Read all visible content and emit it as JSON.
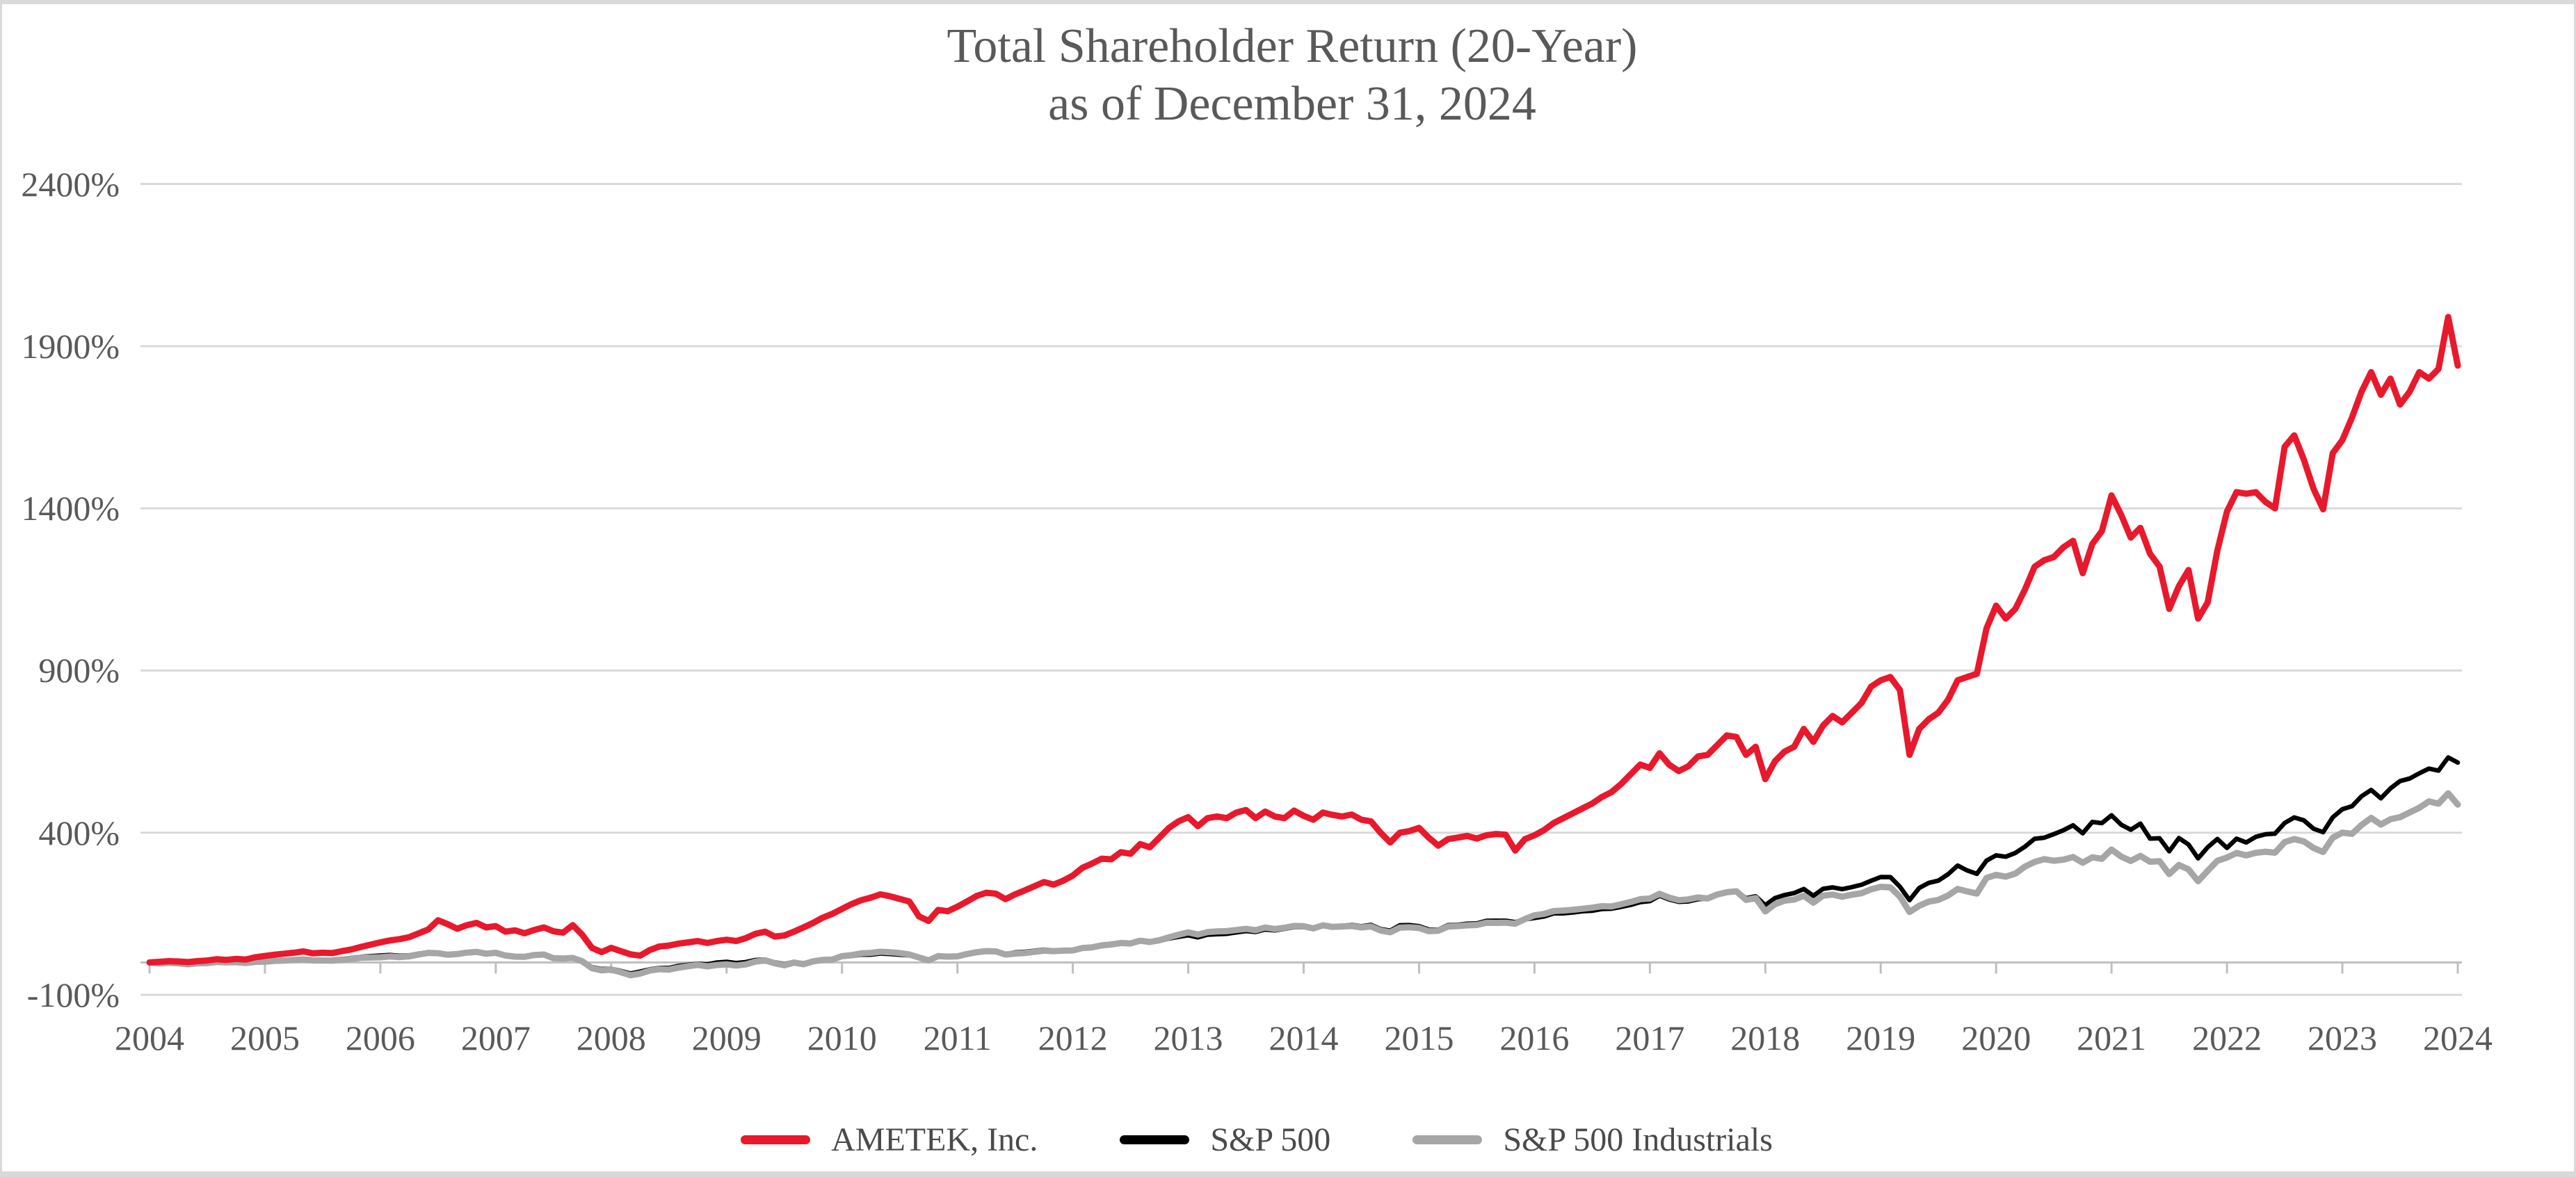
{
  "page": {
    "frame_color": "#d9d9d9",
    "background": "#ffffff"
  },
  "chart_data": {
    "type": "line",
    "title": "Total Shareholder Return (20-Year)",
    "subtitle": "as of December 31, 2024",
    "grid": true,
    "legend_position": "bottom",
    "ylim": [
      -100,
      2400
    ],
    "y_axis_unit": "%",
    "y_ticks": [
      {
        "label": "2400%",
        "value": 2400
      },
      {
        "label": "1900%",
        "value": 1900
      },
      {
        "label": "1400%",
        "value": 1400
      },
      {
        "label": "900%",
        "value": 900
      },
      {
        "label": "400%",
        "value": 400
      },
      {
        "label": "-100%",
        "value": -100
      }
    ],
    "x_ticks": [
      "2004",
      "2005",
      "2006",
      "2007",
      "2008",
      "2009",
      "2010",
      "2011",
      "2012",
      "2013",
      "2014",
      "2015",
      "2016",
      "2017",
      "2018",
      "2019",
      "2020",
      "2021",
      "2022",
      "2023",
      "2024"
    ],
    "x_start": "December 2004 = 0%",
    "points_per_year": 12,
    "grid_color": "#d9d9d9",
    "axis_color": "#bfbfbf",
    "label_color": "#595959",
    "series": [
      {
        "name": "S&P 500",
        "color": "#000000",
        "stroke_width": 6.5,
        "values": [
          0,
          -2.4,
          -0.5,
          -2.2,
          -4.1,
          -1.2,
          -1.1,
          2.5,
          1.6,
          2.4,
          0.7,
          4.5,
          4.9,
          7.6,
          7.9,
          9.2,
          10.6,
          7.4,
          7.5,
          8.2,
          10.8,
          13.7,
          17.4,
          19.6,
          21.3,
          23.1,
          20.4,
          21.8,
          27.2,
          31.6,
          29.5,
          25.6,
          27.4,
          32.1,
          34.1,
          28.4,
          27.9,
          20.2,
          16.3,
          15.8,
          21.5,
          23.1,
          12.7,
          11.8,
          13.4,
          3.3,
          -14.1,
          -20.3,
          -19.4,
          -26.2,
          -34.1,
          -28.3,
          -21.4,
          -17.0,
          -16.9,
          -10.6,
          -7.4,
          -4.0,
          -5.8,
          -0.2,
          1.9,
          -1.8,
          1.3,
          7.4,
          9.1,
          0.4,
          -4.9,
          1.8,
          -2.8,
          5.8,
          9.8,
          9.8,
          17.2,
          19.9,
          24.0,
          23.9,
          27.6,
          26.2,
          24.1,
          21.6,
          15.0,
          7.0,
          18.6,
          18.3,
          19.6,
          25.0,
          30.4,
          34.7,
          33.9,
          25.9,
          31.1,
          32.9,
          36.0,
          39.5,
          37.0,
          37.8,
          38.8,
          46.0,
          48.0,
          53.6,
          56.5,
          60.1,
          58.0,
          66.0,
          61.2,
          66.2,
          73.9,
          79.1,
          83.8,
          77.4,
          85.5,
          87.0,
          88.4,
          92.7,
          96.7,
          94.0,
          101.7,
          98.9,
          103.7,
          109.2,
          109.0,
          102.7,
          114.3,
          110.9,
          112.9,
          115.7,
          111.6,
          116.0,
          103.0,
          98.0,
          114.7,
          115.3,
          111.9,
          101.3,
          101.1,
          114.8,
          115.7,
          119.5,
          120.2,
          128.3,
          128.5,
          128.5,
          124.4,
          132.7,
          137.2,
          141.7,
          151.4,
          151.6,
          154.2,
          157.8,
          159.4,
          164.8,
          165.6,
          171.2,
          177.5,
          186.1,
          189.0,
          205.7,
          194.4,
          187.0,
          188.2,
          195.1,
          196.9,
          207.9,
          218.0,
          219.9,
          198.1,
          204.1,
          176.3,
          198.4,
          208.0,
          213.9,
          226.5,
          205.6,
          226.9,
          231.5,
          226.2,
          232.4,
          239.7,
          251.9,
          263.4,
          263.3,
          233.5,
          192.2,
          229.6,
          245.4,
          252.3,
          272.0,
          298.8,
          283.6,
          273.3,
          314.0,
          330.3,
          325.9,
          337.8,
          357.0,
          381.2,
          384.6,
          395.7,
          407.6,
          422.8,
          398.3,
          433.2,
          429.5,
          453.7,
          424.9,
          409.2,
          428.0,
          381.9,
          382.8,
          342.8,
          383.5,
          363.7,
          321.0,
          355.1,
          380.6,
          353.3,
          381.6,
          370.0,
          387.4,
          395.2,
          397.2,
          430.0,
          447.0,
          438.2,
          412.4,
          401.6,
          447.3,
          472.5,
          481.6,
          512.4,
          532.0,
          506.1,
          536.4,
          559.3,
          567.2,
          583.2,
          597.6,
          591.3,
          632.1,
          616.3
        ]
      },
      {
        "name": "S&P 500 Industrials",
        "color": "#a6a6a6",
        "stroke_width": 9,
        "values": [
          0,
          -2.8,
          -1.0,
          -2.5,
          -5.5,
          -2.5,
          -2.0,
          1.5,
          0.2,
          1.0,
          -1.5,
          2.0,
          2.3,
          5.0,
          5.6,
          8.0,
          9.5,
          6.5,
          6.0,
          5.5,
          8.0,
          11.0,
          14.5,
          15.5,
          15.9,
          18.5,
          16.5,
          18.8,
          24.5,
          29.5,
          28.5,
          24.0,
          26.0,
          30.5,
          32.5,
          27.0,
          29.8,
          21.5,
          18.0,
          17.5,
          23.0,
          24.5,
          13.0,
          12.0,
          14.0,
          3.5,
          -17.5,
          -24.5,
          -22.0,
          -30.0,
          -39.5,
          -34.5,
          -25.0,
          -20.5,
          -22.0,
          -16.0,
          -11.5,
          -7.5,
          -12.0,
          -8.0,
          -5.7,
          -9.5,
          -6.0,
          2.5,
          6.5,
          -2.5,
          -8.5,
          -0.5,
          -5.5,
          3.5,
          8.0,
          9.0,
          19.5,
          22.5,
          28.0,
          29.5,
          33.0,
          31.5,
          29.0,
          24.5,
          15.5,
          6.5,
          19.5,
          18.0,
          18.8,
          26.0,
          31.5,
          35.0,
          34.0,
          24.5,
          27.5,
          29.0,
          32.5,
          36.5,
          35.0,
          36.5,
          37.0,
          44.5,
          46.5,
          52.5,
          55.5,
          60.0,
          58.5,
          67.0,
          63.0,
          68.5,
          77.5,
          85.5,
          92.8,
          86.0,
          93.5,
          95.5,
          96.5,
          100.0,
          103.5,
          99.5,
          107.5,
          103.0,
          107.0,
          112.5,
          111.7,
          105.0,
          114.5,
          109.5,
          111.0,
          112.5,
          108.0,
          111.0,
          98.5,
          93.0,
          107.5,
          108.5,
          106.4,
          96.5,
          98.0,
          110.5,
          112.0,
          114.5,
          115.5,
          122.5,
          122.0,
          122.5,
          119.5,
          133.5,
          145.4,
          149.5,
          158.5,
          160.0,
          162.5,
          165.5,
          169.0,
          173.5,
          172.5,
          179.5,
          186.5,
          195.0,
          196.9,
          211.5,
          200.0,
          192.0,
          194.5,
          200.5,
          197.5,
          209.5,
          216.5,
          219.5,
          193.0,
          198.5,
          157.4,
          179.5,
          190.5,
          194.0,
          205.5,
          184.5,
          206.0,
          209.5,
          202.5,
          209.0,
          213.5,
          225.5,
          233.1,
          231.5,
          203.0,
          155.5,
          175.0,
          187.5,
          193.0,
          206.5,
          226.5,
          219.0,
          212.5,
          260.5,
          270.0,
          264.5,
          274.0,
          295.5,
          310.0,
          318.5,
          313.5,
          317.0,
          325.0,
          307.5,
          324.0,
          319.5,
          348.1,
          326.5,
          313.0,
          328.5,
          310.5,
          312.0,
          272.5,
          300.5,
          287.0,
          250.5,
          282.5,
          313.5,
          323.5,
          337.5,
          330.0,
          338.0,
          341.5,
          338.5,
          371.0,
          380.5,
          373.0,
          353.0,
          340.5,
          384.5,
          400.2,
          396.5,
          424.0,
          445.5,
          425.0,
          441.5,
          448.0,
          462.5,
          477.0,
          496.5,
          489.5,
          521.5,
          486.8
        ]
      },
      {
        "name": "AMETEK, Inc.",
        "color": "#e8192c",
        "stroke_width": 9,
        "values": [
          0,
          2,
          4,
          3,
          1,
          4,
          6,
          10,
          8,
          11,
          9,
          16,
          20,
          24,
          27,
          30,
          34,
          28,
          30,
          29,
          35,
          40,
          48,
          55,
          62,
          68,
          72,
          78,
          90,
          102,
          130,
          118,
          104,
          115,
          122,
          108,
          112,
          95,
          99,
          90,
          100,
          108,
          96,
          92,
          115,
          85,
          45,
          32,
          45,
          35,
          25,
          21,
          38,
          49,
          52,
          58,
          62,
          66,
          60,
          66,
          70,
          66,
          75,
          88,
          95,
          80,
          83,
          95,
          108,
          122,
          138,
          150,
          165,
          180,
          192,
          200,
          210,
          204,
          196,
          188,
          142,
          128,
          162,
          158,
          172,
          188,
          205,
          215,
          212,
          195,
          210,
          222,
          235,
          248,
          240,
          252,
          268,
          292,
          305,
          320,
          318,
          340,
          335,
          365,
          355,
          385,
          415,
          435,
          448,
          420,
          445,
          450,
          445,
          462,
          470,
          445,
          465,
          450,
          445,
          468,
          452,
          440,
          462,
          455,
          450,
          456,
          440,
          435,
          400,
          370,
          400,
          405,
          415,
          385,
          360,
          380,
          385,
          390,
          382,
          392,
          396,
          394,
          345,
          380,
          392,
          408,
          430,
          445,
          460,
          475,
          490,
          510,
          525,
          550,
          580,
          610,
          600,
          645,
          610,
          590,
          605,
          635,
          640,
          670,
          700,
          695,
          640,
          665,
          565,
          620,
          650,
          665,
          720,
          680,
          730,
          760,
          740,
          770,
          800,
          850,
          870,
          880,
          840,
          640,
          720,
          750,
          770,
          810,
          870,
          880,
          890,
          1030,
          1100,
          1060,
          1090,
          1150,
          1220,
          1240,
          1250,
          1280,
          1300,
          1200,
          1290,
          1330,
          1440,
          1380,
          1310,
          1340,
          1260,
          1220,
          1090,
          1160,
          1210,
          1060,
          1110,
          1270,
          1390,
          1450,
          1445,
          1450,
          1420,
          1400,
          1590,
          1625,
          1550,
          1460,
          1397,
          1570,
          1610,
          1680,
          1760,
          1820,
          1750,
          1800,
          1720,
          1760,
          1820,
          1800,
          1830,
          1990,
          1840
        ]
      }
    ],
    "legend_order": [
      "AMETEK, Inc.",
      "S&P 500",
      "S&P 500 Industrials"
    ],
    "draw_order": [
      "S&P 500",
      "S&P 500 Industrials",
      "AMETEK, Inc."
    ]
  }
}
